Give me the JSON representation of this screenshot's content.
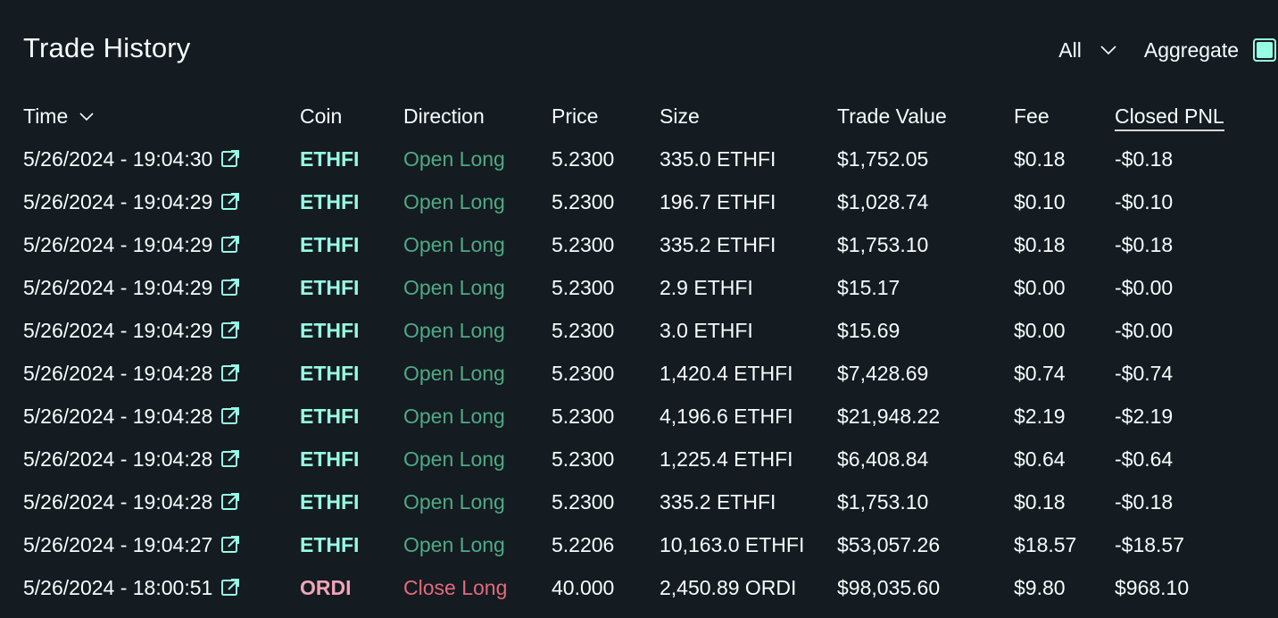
{
  "header": {
    "title": "Trade History",
    "filter_label": "All",
    "aggregate_label": "Aggregate",
    "aggregate_checked": true
  },
  "colors": {
    "background": "#141b21",
    "accent": "#97fce4",
    "long": "#4faa84",
    "short": "#e46a7c"
  },
  "columns": {
    "time": "Time",
    "coin": "Coin",
    "direction": "Direction",
    "price": "Price",
    "size": "Size",
    "trade_value": "Trade Value",
    "fee": "Fee",
    "closed_pnl": "Closed PNL"
  },
  "rows": [
    {
      "time": "5/26/2024 - 19:04:30",
      "coin": "ETHFI",
      "direction": "Open Long",
      "side": "long",
      "price": "5.2300",
      "size": "335.0 ETHFI",
      "trade_value": "$1,752.05",
      "fee": "$0.18",
      "closed_pnl": "-$0.18"
    },
    {
      "time": "5/26/2024 - 19:04:29",
      "coin": "ETHFI",
      "direction": "Open Long",
      "side": "long",
      "price": "5.2300",
      "size": "196.7 ETHFI",
      "trade_value": "$1,028.74",
      "fee": "$0.10",
      "closed_pnl": "-$0.10"
    },
    {
      "time": "5/26/2024 - 19:04:29",
      "coin": "ETHFI",
      "direction": "Open Long",
      "side": "long",
      "price": "5.2300",
      "size": "335.2 ETHFI",
      "trade_value": "$1,753.10",
      "fee": "$0.18",
      "closed_pnl": "-$0.18"
    },
    {
      "time": "5/26/2024 - 19:04:29",
      "coin": "ETHFI",
      "direction": "Open Long",
      "side": "long",
      "price": "5.2300",
      "size": "2.9 ETHFI",
      "trade_value": "$15.17",
      "fee": "$0.00",
      "closed_pnl": "-$0.00"
    },
    {
      "time": "5/26/2024 - 19:04:29",
      "coin": "ETHFI",
      "direction": "Open Long",
      "side": "long",
      "price": "5.2300",
      "size": "3.0 ETHFI",
      "trade_value": "$15.69",
      "fee": "$0.00",
      "closed_pnl": "-$0.00"
    },
    {
      "time": "5/26/2024 - 19:04:28",
      "coin": "ETHFI",
      "direction": "Open Long",
      "side": "long",
      "price": "5.2300",
      "size": "1,420.4 ETHFI",
      "trade_value": "$7,428.69",
      "fee": "$0.74",
      "closed_pnl": "-$0.74"
    },
    {
      "time": "5/26/2024 - 19:04:28",
      "coin": "ETHFI",
      "direction": "Open Long",
      "side": "long",
      "price": "5.2300",
      "size": "4,196.6 ETHFI",
      "trade_value": "$21,948.22",
      "fee": "$2.19",
      "closed_pnl": "-$2.19"
    },
    {
      "time": "5/26/2024 - 19:04:28",
      "coin": "ETHFI",
      "direction": "Open Long",
      "side": "long",
      "price": "5.2300",
      "size": "1,225.4 ETHFI",
      "trade_value": "$6,408.84",
      "fee": "$0.64",
      "closed_pnl": "-$0.64"
    },
    {
      "time": "5/26/2024 - 19:04:28",
      "coin": "ETHFI",
      "direction": "Open Long",
      "side": "long",
      "price": "5.2300",
      "size": "335.2 ETHFI",
      "trade_value": "$1,753.10",
      "fee": "$0.18",
      "closed_pnl": "-$0.18"
    },
    {
      "time": "5/26/2024 - 19:04:27",
      "coin": "ETHFI",
      "direction": "Open Long",
      "side": "long",
      "price": "5.2206",
      "size": "10,163.0 ETHFI",
      "trade_value": "$53,057.26",
      "fee": "$18.57",
      "closed_pnl": "-$18.57"
    },
    {
      "time": "5/26/2024 - 18:00:51",
      "coin": "ORDI",
      "direction": "Close Long",
      "side": "short",
      "price": "40.000",
      "size": "2,450.89 ORDI",
      "trade_value": "$98,035.60",
      "fee": "$9.80",
      "closed_pnl": "$968.10"
    }
  ]
}
